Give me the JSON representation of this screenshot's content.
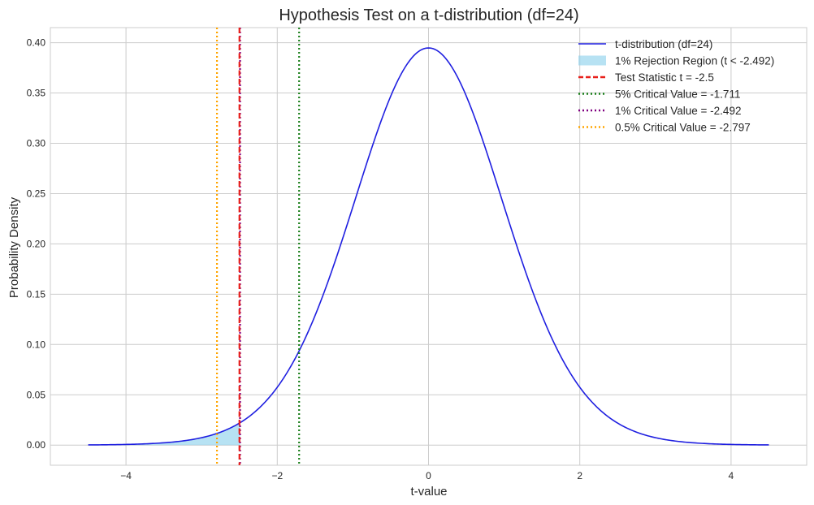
{
  "chart_data": {
    "type": "line",
    "title": "Hypothesis Test on a t-distribution (df=24)",
    "xlabel": "t-value",
    "ylabel": "Probability Density",
    "xlim": [
      -5,
      5
    ],
    "ylim": [
      -0.02,
      0.415
    ],
    "xticks": [
      -4,
      -2,
      0,
      2,
      4
    ],
    "xtick_labels": [
      "−4",
      "−2",
      "0",
      "2",
      "4"
    ],
    "yticks": [
      0.0,
      0.05,
      0.1,
      0.15,
      0.2,
      0.25,
      0.3,
      0.35,
      0.4
    ],
    "ytick_labels": [
      "0.00",
      "0.05",
      "0.10",
      "0.15",
      "0.20",
      "0.25",
      "0.30",
      "0.35",
      "0.40"
    ],
    "grid": true,
    "legend_position": "top-right",
    "series": [
      {
        "name": "t-distribution (df=24)",
        "kind": "curve",
        "color": "#1f1fe0",
        "x": [
          -4.5,
          -4.25,
          -4.0,
          -3.75,
          -3.5,
          -3.25,
          -3.0,
          -2.797,
          -2.75,
          -2.5,
          -2.492,
          -2.25,
          -2.0,
          -1.75,
          -1.711,
          -1.5,
          -1.25,
          -1.0,
          -0.75,
          -0.5,
          -0.25,
          0.0,
          0.25,
          0.5,
          0.75,
          1.0,
          1.25,
          1.5,
          1.75,
          2.0,
          2.25,
          2.5,
          2.75,
          3.0,
          3.25,
          3.5,
          3.75,
          4.0,
          4.25,
          4.5
        ],
        "y": [
          0.0003,
          0.0005,
          0.0009,
          0.0016,
          0.0027,
          0.0044,
          0.0072,
          0.0102,
          0.0111,
          0.0184,
          0.0187,
          0.0337,
          0.0569,
          0.0883,
          0.0939,
          0.1267,
          0.1844,
          0.2384,
          0.2998,
          0.3488,
          0.3823,
          0.395,
          0.3823,
          0.3488,
          0.2998,
          0.2384,
          0.1844,
          0.1267,
          0.0883,
          0.0569,
          0.0337,
          0.0184,
          0.0111,
          0.0072,
          0.0044,
          0.0027,
          0.0016,
          0.0009,
          0.0005,
          0.0003
        ]
      }
    ],
    "rejection_region": {
      "name": "1% Rejection Region (t < -2.492)",
      "color": "#87ceeb",
      "x_from": -4.5,
      "x_to": -2.492
    },
    "vlines": [
      {
        "name": "Test Statistic t = -2.5",
        "x": -2.5,
        "color": "#e8201a",
        "style": "dashed"
      },
      {
        "name": "5% Critical Value = -1.711",
        "x": -1.711,
        "color": "#1a7f1a",
        "style": "dotted"
      },
      {
        "name": "1% Critical Value = -2.492",
        "x": -2.492,
        "color": "#800080",
        "style": "dotted"
      },
      {
        "name": "0.5% Critical Value = -2.797",
        "x": -2.797,
        "color": "#ffa500",
        "style": "dotted"
      }
    ]
  }
}
